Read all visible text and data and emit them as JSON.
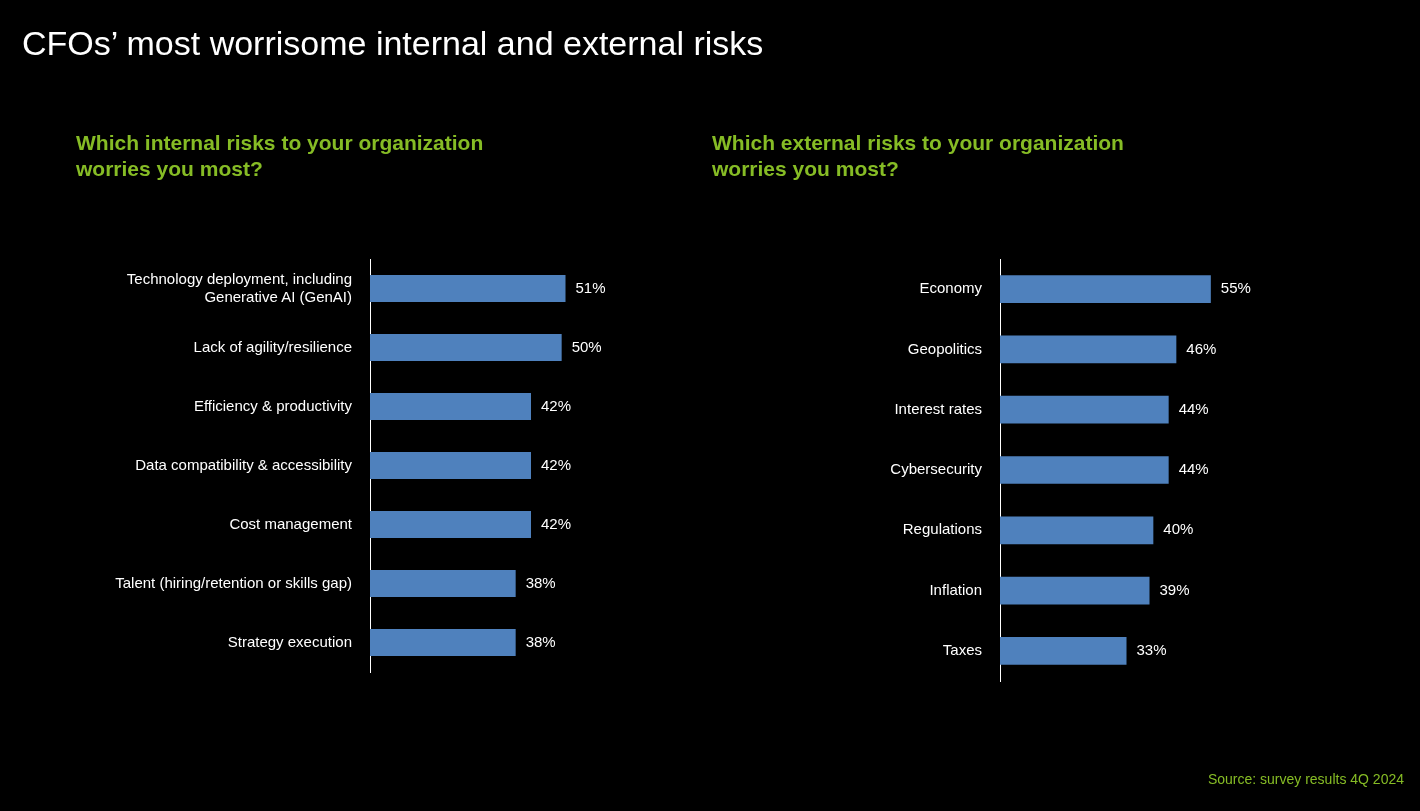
{
  "chart_data": [
    {
      "type": "other",
      "title": "CFOs’ most worrisome internal and external risks",
      "annotations": [
        "Source: survey results 4Q 2024"
      ]
    },
    {
      "type": "bar",
      "orientation": "horizontal",
      "title": "Which internal risks to your organization worries you most?",
      "categories": [
        "Technology deployment, including Generative AI (GenAI)",
        "Lack of agility/resilience",
        "Efficiency & productivity",
        "Data compatibility & accessibility",
        "Cost management",
        "Talent (hiring/retention or skills gap)",
        "Strategy execution"
      ],
      "values": [
        51,
        50,
        42,
        42,
        42,
        38,
        38
      ],
      "value_labels": [
        "51%",
        "50%",
        "42%",
        "42%",
        "42%",
        "38%",
        "38%"
      ],
      "color": "#4f81bd",
      "tick_labels": "y"
    },
    {
      "type": "bar",
      "orientation": "horizontal",
      "title": "Which external risks to your organization worries you most?",
      "categories": [
        "Economy",
        "Geopolitics",
        "Interest rates",
        "Cybersecurity",
        "Regulations",
        "Inflation",
        "Taxes"
      ],
      "values": [
        55,
        46,
        44,
        44,
        40,
        39,
        33
      ],
      "value_labels": [
        "55%",
        "46%",
        "44%",
        "44%",
        "40%",
        "39%",
        "33%"
      ],
      "color": "#4f81bd",
      "tick_labels": "y"
    }
  ]
}
